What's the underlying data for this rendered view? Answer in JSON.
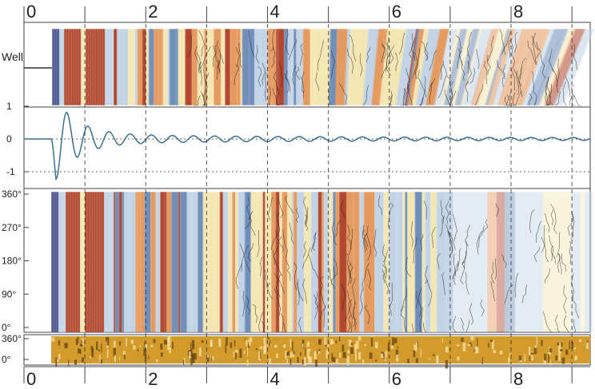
{
  "top_scale": {
    "labels": [
      "0",
      "2",
      "4",
      "6",
      "8"
    ],
    "values": [
      0,
      2,
      4,
      6,
      8
    ]
  },
  "bottom_scale": {
    "labels": [
      "0",
      "2",
      "4",
      "6",
      "8"
    ],
    "values": [
      0,
      2,
      4,
      6,
      8
    ]
  },
  "scale_range": [
    0,
    9.3
  ],
  "well_panel": {
    "label": "Well"
  },
  "trace_panel": {
    "y_labels": [
      "1",
      "0",
      "-1"
    ],
    "y_values": [
      1,
      0,
      -1
    ],
    "trace_color": "#3d6f8e"
  },
  "azimuth_panel": {
    "labels": [
      "360°",
      "270°",
      "180°",
      "90°",
      "0°"
    ],
    "values": [
      360,
      270,
      180,
      90,
      0
    ]
  },
  "image_log_panel": {
    "labels": [
      "360°",
      "0°"
    ],
    "values": [
      360,
      0
    ]
  },
  "colors": {
    "red": "#b0462e",
    "orange": "#e59a5e",
    "cream": "#f4e7b4",
    "blue": "#6f8fbb",
    "light_blue": "#c2d4e6",
    "navy": "#4e5790",
    "gold": "#d29b2b",
    "dark_gold": "#6e4a16"
  }
}
